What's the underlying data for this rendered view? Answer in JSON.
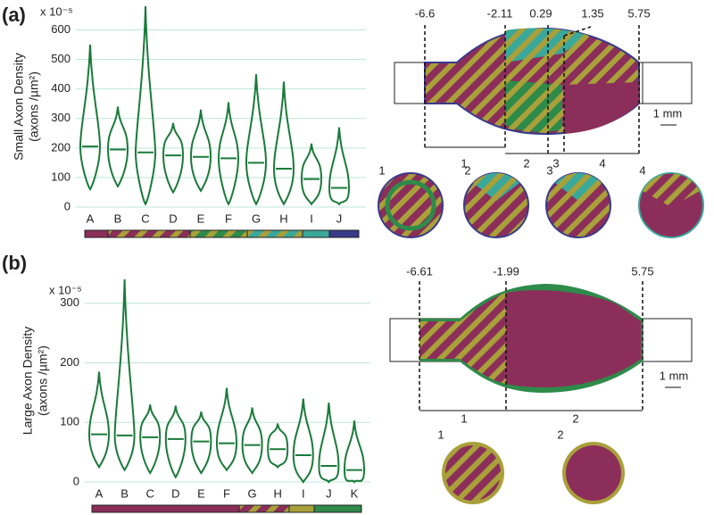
{
  "panels": [
    "(a)",
    "(b)"
  ],
  "chart_data": [
    {
      "type": "violin",
      "ylabel": [
        "Small Axon Density",
        "(axons /µm²)"
      ],
      "y_unit": "x 10⁻⁵",
      "categories": [
        "A",
        "B",
        "C",
        "D",
        "E",
        "F",
        "G",
        "H",
        "I",
        "J"
      ],
      "medians": [
        205,
        195,
        185,
        175,
        170,
        165,
        150,
        130,
        95,
        65
      ],
      "mins": [
        60,
        70,
        10,
        50,
        55,
        10,
        10,
        10,
        10,
        10
      ],
      "maxs": [
        550,
        340,
        680,
        285,
        330,
        355,
        450,
        425,
        215,
        270
      ],
      "color": "#1a7a3a",
      "ylim": [
        0,
        680
      ],
      "yticks": [
        0,
        100,
        200,
        300,
        400,
        500,
        600
      ],
      "grid": true
    },
    {
      "type": "violin",
      "ylabel": [
        "Large Axon Density",
        "(axons /µm²)"
      ],
      "y_unit": "x 10⁻⁵",
      "categories": [
        "A",
        "B",
        "C",
        "D",
        "E",
        "F",
        "G",
        "H",
        "I",
        "J",
        "K"
      ],
      "medians": [
        80,
        78,
        75,
        72,
        68,
        65,
        62,
        55,
        45,
        27,
        20
      ],
      "mins": [
        25,
        20,
        15,
        8,
        15,
        20,
        15,
        25,
        0,
        0,
        0
      ],
      "maxs": [
        185,
        340,
        130,
        128,
        118,
        158,
        125,
        98,
        140,
        133,
        103
      ],
      "color": "#1a7a3a",
      "ylim": [
        0,
        340
      ],
      "yticks": [
        0,
        100,
        200,
        300
      ],
      "grid": true
    }
  ],
  "diagram_a": {
    "positions": [
      "-6.6",
      "-2.11",
      "0.29",
      "1.35",
      "5.75"
    ],
    "scale": "1 mm",
    "segments": [
      "1",
      "2",
      "3",
      "4"
    ],
    "sections": [
      "1",
      "2",
      "3",
      "4"
    ]
  },
  "diagram_b": {
    "positions": [
      "-6.61",
      "-1.99",
      "5.75"
    ],
    "scale": "1 mm",
    "segments": [
      "1",
      "2"
    ],
    "sections": [
      "1",
      "2"
    ]
  }
}
